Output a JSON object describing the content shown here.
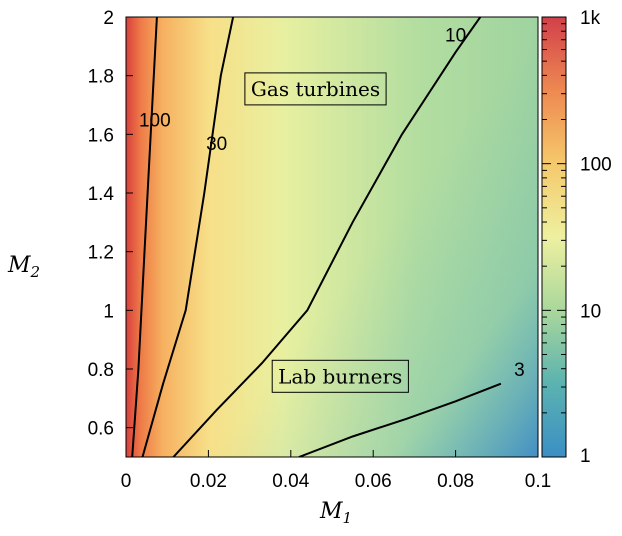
{
  "chart_data": {
    "type": "heatmap",
    "title": "",
    "xlabel": {
      "main": "M",
      "sub": "1"
    },
    "ylabel": {
      "main": "M",
      "sub": "2"
    },
    "xlim": [
      0,
      0.1
    ],
    "ylim": [
      0.5,
      2
    ],
    "x_ticks": [
      {
        "value": 0,
        "label": "0"
      },
      {
        "value": 0.02,
        "label": "0.02"
      },
      {
        "value": 0.04,
        "label": "0.04"
      },
      {
        "value": 0.06,
        "label": "0.06"
      },
      {
        "value": 0.08,
        "label": "0.08"
      },
      {
        "value": 0.1,
        "label": "0.1"
      }
    ],
    "y_ticks": [
      {
        "value": 0.6,
        "label": "0.6"
      },
      {
        "value": 0.8,
        "label": "0.8"
      },
      {
        "value": 1.0,
        "label": "1"
      },
      {
        "value": 1.2,
        "label": "1.2"
      },
      {
        "value": 1.4,
        "label": "1.4"
      },
      {
        "value": 1.6,
        "label": "1.6"
      },
      {
        "value": 1.8,
        "label": "1.8"
      },
      {
        "value": 2.0,
        "label": "2"
      }
    ],
    "colorbar": {
      "scale": "log",
      "range": [
        1,
        1000
      ],
      "tick_labels": [
        {
          "value": 1,
          "label": "1"
        },
        {
          "value": 10,
          "label": "10"
        },
        {
          "value": 100,
          "label": "100"
        },
        {
          "value": 1000,
          "label": "1k"
        }
      ],
      "colors": [
        "#3b8fc4",
        "#5cb3b0",
        "#a8d79c",
        "#eef0a0",
        "#f5c86a",
        "#ee8a52",
        "#d2404a"
      ]
    },
    "contours": [
      {
        "level": 100,
        "label": "100",
        "label_at": [
          0.007,
          1.65
        ],
        "points": [
          [
            0.0015,
            0.5
          ],
          [
            0.003,
            0.8
          ],
          [
            0.0045,
            1.2
          ],
          [
            0.006,
            1.6
          ],
          [
            0.0075,
            2.0
          ]
        ]
      },
      {
        "level": 30,
        "label": "30",
        "label_at": [
          0.022,
          1.57
        ],
        "points": [
          [
            0.004,
            0.5
          ],
          [
            0.009,
            0.75
          ],
          [
            0.0145,
            1.0
          ],
          [
            0.019,
            1.4
          ],
          [
            0.023,
            1.8
          ],
          [
            0.026,
            2.0
          ]
        ]
      },
      {
        "level": 10,
        "label": "10",
        "label_at": [
          0.08,
          1.94
        ],
        "points": [
          [
            0.0115,
            0.5
          ],
          [
            0.022,
            0.66
          ],
          [
            0.033,
            0.82
          ],
          [
            0.044,
            1.0
          ],
          [
            0.055,
            1.3
          ],
          [
            0.067,
            1.6
          ],
          [
            0.08,
            1.88
          ],
          [
            0.086,
            2.0
          ]
        ]
      },
      {
        "level": 3,
        "label": "3",
        "label_at": [
          0.0955,
          0.8
        ],
        "points": [
          [
            0.042,
            0.5
          ],
          [
            0.055,
            0.57
          ],
          [
            0.068,
            0.63
          ],
          [
            0.08,
            0.69
          ],
          [
            0.091,
            0.75
          ]
        ]
      }
    ],
    "annotations": [
      {
        "text": "Gas turbines",
        "at": [
          0.046,
          1.755
        ]
      },
      {
        "text": "Lab burners",
        "at": [
          0.052,
          0.775
        ]
      }
    ]
  }
}
